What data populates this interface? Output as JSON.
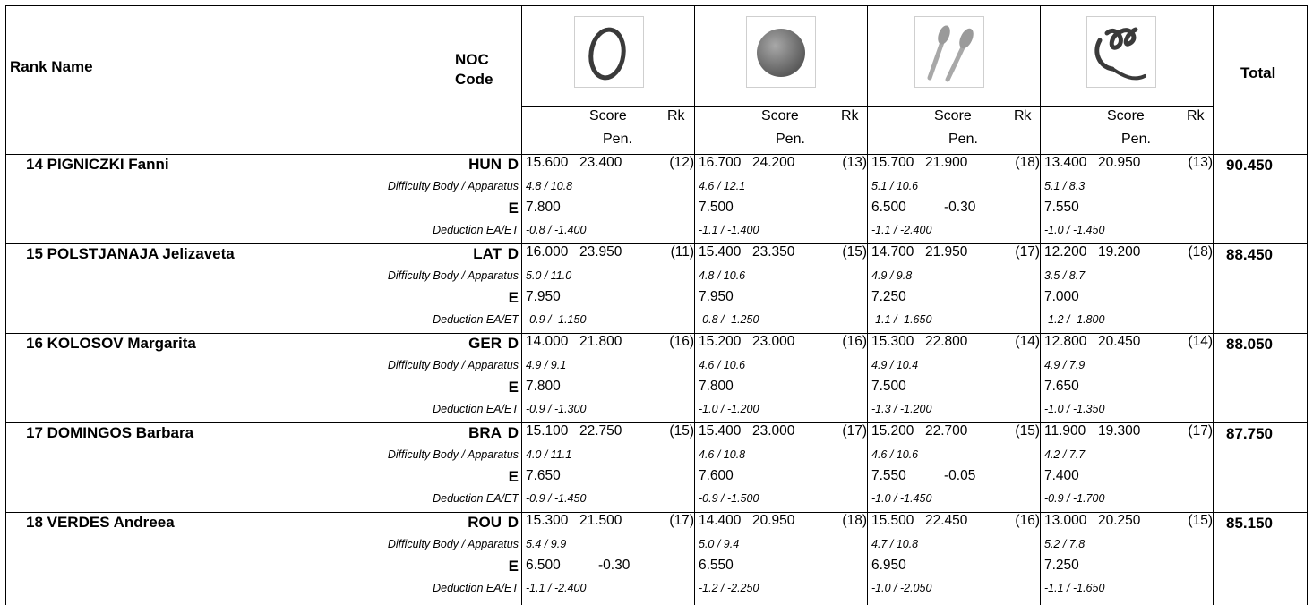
{
  "header": {
    "rank_name": "Rank Name",
    "noc_line1": "NOC",
    "noc_line2": "Code",
    "total": "Total",
    "score": "Score",
    "rk": "Rk",
    "pen": "Pen.",
    "apparatus": [
      {
        "icon": "hoop-icon"
      },
      {
        "icon": "ball-icon"
      },
      {
        "icon": "clubs-icon"
      },
      {
        "icon": "ribbon-icon"
      }
    ]
  },
  "labels": {
    "d": "D",
    "difficulty": "Difficulty Body / Apparatus",
    "e": "E",
    "deduction": "Deduction EA/ET"
  },
  "athletes": [
    {
      "rank_name": "14 PIGNICZKI Fanni",
      "noc": "HUN",
      "total": "90.450",
      "apps": [
        {
          "d": "15.600",
          "score": "23.400",
          "rk": "(12)",
          "diff": "4.8 / 10.8",
          "e": "7.800",
          "pen": "",
          "ded": "-0.8 / -1.400"
        },
        {
          "d": "16.700",
          "score": "24.200",
          "rk": "(13)",
          "diff": "4.6 / 12.1",
          "e": "7.500",
          "pen": "",
          "ded": "-1.1 / -1.400"
        },
        {
          "d": "15.700",
          "score": "21.900",
          "rk": "(18)",
          "diff": "5.1 / 10.6",
          "e": "6.500",
          "pen": "-0.30",
          "ded": "-1.1 / -2.400"
        },
        {
          "d": "13.400",
          "score": "20.950",
          "rk": "(13)",
          "diff": "5.1 / 8.3",
          "e": "7.550",
          "pen": "",
          "ded": "-1.0 / -1.450"
        }
      ]
    },
    {
      "rank_name": "15 POLSTJANAJA Jelizaveta",
      "noc": "LAT",
      "total": "88.450",
      "apps": [
        {
          "d": "16.000",
          "score": "23.950",
          "rk": "(11)",
          "diff": "5.0 / 11.0",
          "e": "7.950",
          "pen": "",
          "ded": "-0.9 / -1.150"
        },
        {
          "d": "15.400",
          "score": "23.350",
          "rk": "(15)",
          "diff": "4.8 / 10.6",
          "e": "7.950",
          "pen": "",
          "ded": "-0.8 / -1.250"
        },
        {
          "d": "14.700",
          "score": "21.950",
          "rk": "(17)",
          "diff": "4.9 / 9.8",
          "e": "7.250",
          "pen": "",
          "ded": "-1.1 / -1.650"
        },
        {
          "d": "12.200",
          "score": "19.200",
          "rk": "(18)",
          "diff": "3.5 / 8.7",
          "e": "7.000",
          "pen": "",
          "ded": "-1.2 / -1.800"
        }
      ]
    },
    {
      "rank_name": "16 KOLOSOV Margarita",
      "noc": "GER",
      "total": "88.050",
      "apps": [
        {
          "d": "14.000",
          "score": "21.800",
          "rk": "(16)",
          "diff": "4.9 / 9.1",
          "e": "7.800",
          "pen": "",
          "ded": "-0.9 / -1.300"
        },
        {
          "d": "15.200",
          "score": "23.000",
          "rk": "(16)",
          "diff": "4.6 / 10.6",
          "e": "7.800",
          "pen": "",
          "ded": "-1.0 / -1.200"
        },
        {
          "d": "15.300",
          "score": "22.800",
          "rk": "(14)",
          "diff": "4.9 / 10.4",
          "e": "7.500",
          "pen": "",
          "ded": "-1.3 / -1.200"
        },
        {
          "d": "12.800",
          "score": "20.450",
          "rk": "(14)",
          "diff": "4.9 / 7.9",
          "e": "7.650",
          "pen": "",
          "ded": "-1.0 / -1.350"
        }
      ]
    },
    {
      "rank_name": "17 DOMINGOS Barbara",
      "noc": "BRA",
      "total": "87.750",
      "apps": [
        {
          "d": "15.100",
          "score": "22.750",
          "rk": "(15)",
          "diff": "4.0 / 11.1",
          "e": "7.650",
          "pen": "",
          "ded": "-0.9 / -1.450"
        },
        {
          "d": "15.400",
          "score": "23.000",
          "rk": "(17)",
          "diff": "4.6 / 10.8",
          "e": "7.600",
          "pen": "",
          "ded": "-0.9 / -1.500"
        },
        {
          "d": "15.200",
          "score": "22.700",
          "rk": "(15)",
          "diff": "4.6 / 10.6",
          "e": "7.550",
          "pen": "-0.05",
          "ded": "-1.0 / -1.450"
        },
        {
          "d": "11.900",
          "score": "19.300",
          "rk": "(17)",
          "diff": "4.2 / 7.7",
          "e": "7.400",
          "pen": "",
          "ded": "-0.9 / -1.700"
        }
      ]
    },
    {
      "rank_name": "18 VERDES Andreea",
      "noc": "ROU",
      "total": "85.150",
      "apps": [
        {
          "d": "15.300",
          "score": "21.500",
          "rk": "(17)",
          "diff": "5.4 / 9.9",
          "e": "6.500",
          "pen": "-0.30",
          "ded": "-1.1 / -2.400"
        },
        {
          "d": "14.400",
          "score": "20.950",
          "rk": "(18)",
          "diff": "5.0 / 9.4",
          "e": "6.550",
          "pen": "",
          "ded": "-1.2 / -2.250"
        },
        {
          "d": "15.500",
          "score": "22.450",
          "rk": "(16)",
          "diff": "4.7 / 10.8",
          "e": "6.950",
          "pen": "",
          "ded": "-1.0 / -2.050"
        },
        {
          "d": "13.000",
          "score": "20.250",
          "rk": "(15)",
          "diff": "5.2 / 7.8",
          "e": "7.250",
          "pen": "",
          "ded": "-1.1 / -1.650"
        }
      ]
    }
  ]
}
